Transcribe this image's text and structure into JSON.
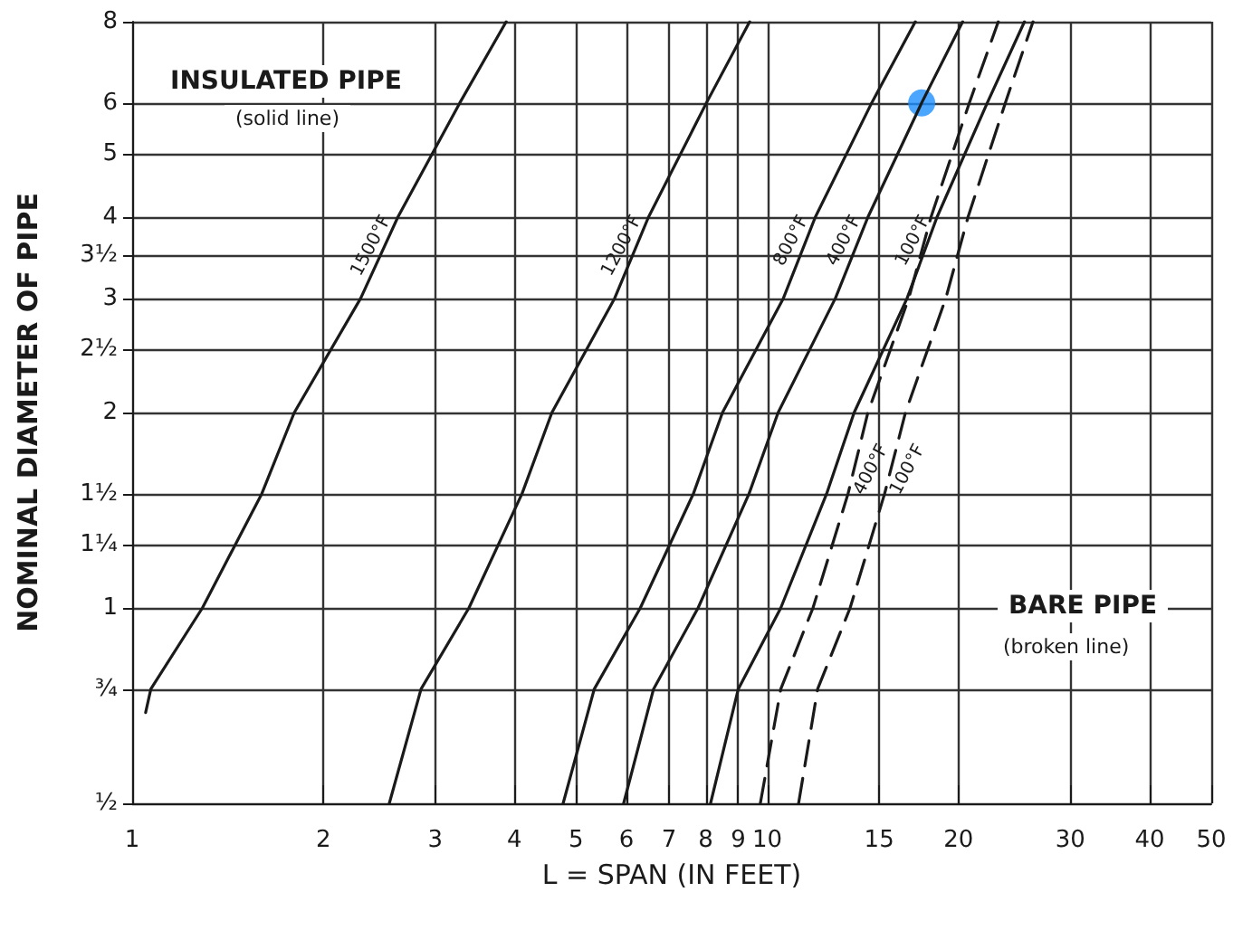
{
  "chart_data": {
    "type": "line",
    "xlabel": "L = SPAN (IN FEET)",
    "ylabel": "NOMINAL DIAMETER OF PIPE",
    "log": "xy",
    "grid": true,
    "legend": false,
    "marker": "none",
    "xlim": [
      1,
      50
    ],
    "xticks": [
      1,
      2,
      3,
      4,
      5,
      6,
      7,
      8,
      9,
      10,
      15,
      20,
      30,
      40,
      50
    ],
    "ylim": [
      0.5,
      8
    ],
    "yticks": [
      {
        "value": 0.5,
        "label": "½"
      },
      {
        "value": 0.75,
        "label": "¾"
      },
      1,
      {
        "value": 1.25,
        "label": "1¼"
      },
      {
        "value": 1.5,
        "label": "1½"
      },
      2,
      {
        "value": 2.5,
        "label": "2½"
      },
      3,
      {
        "value": 3.5,
        "label": "3½"
      },
      4,
      5,
      6,
      8
    ],
    "annotations": [
      "INSULATED PIPE",
      "(solid line)",
      "BARE PIPE",
      "(broken line)"
    ],
    "series": [
      {
        "name": "1500°F",
        "color": "#1a1a1a",
        "line_style": "solid",
        "x": [
          1.05,
          1.07,
          1.29,
          1.6,
          1.8,
          2.29,
          2.62,
          3.28,
          3.88
        ],
        "values": [
          0.69,
          0.75,
          1,
          1.5,
          2,
          3,
          4,
          6,
          8
        ]
      },
      {
        "name": "1200°F",
        "color": "#1a1a1a",
        "line_style": "solid",
        "x": [
          2.54,
          2.85,
          3.39,
          4.11,
          4.58,
          5.75,
          6.5,
          8.02,
          9.38
        ],
        "values": [
          0.5,
          0.75,
          1,
          1.5,
          2,
          3,
          4,
          6,
          8
        ]
      },
      {
        "name": "800°F",
        "color": "#1a1a1a",
        "line_style": "solid",
        "x": [
          4.77,
          5.34,
          6.31,
          7.65,
          8.5,
          10.6,
          11.9,
          14.6,
          17.1
        ],
        "values": [
          0.5,
          0.75,
          1,
          1.5,
          2,
          3,
          4,
          6,
          8
        ]
      },
      {
        "name": "400°F",
        "color": "#1a1a1a",
        "line_style": "solid",
        "x": [
          5.94,
          6.62,
          7.78,
          9.36,
          10.4,
          12.8,
          14.4,
          17.5,
          20.3
        ],
        "values": [
          0.5,
          0.75,
          1,
          1.5,
          2,
          3,
          4,
          6,
          8
        ]
      },
      {
        "name": "100°F",
        "color": "#1a1a1a",
        "line_style": "solid",
        "x": [
          8.14,
          9,
          10.5,
          12.4,
          13.7,
          16.6,
          18.5,
          22.2,
          25.4
        ],
        "values": [
          0.5,
          0.75,
          1,
          1.5,
          2,
          3,
          4,
          6,
          8
        ]
      },
      {
        "name": "400°F",
        "color": "#1a1a1a",
        "line_style": "dashed",
        "x": [
          9.75,
          10.5,
          11.8,
          13.4,
          14.4,
          16.7,
          18.1,
          20.8,
          23.1
        ],
        "values": [
          0.5,
          0.75,
          1,
          1.5,
          2,
          3,
          4,
          6,
          8
        ]
      },
      {
        "name": "100°F",
        "color": "#1a1a1a",
        "line_style": "dashed",
        "x": [
          11.2,
          12,
          13.5,
          15.3,
          16.5,
          19.1,
          20.7,
          23.7,
          26.2
        ],
        "values": [
          0.5,
          0.75,
          1,
          1.5,
          2,
          3,
          4,
          6,
          8
        ]
      },
      {
        "type": "scatter",
        "color": "#1e90ff",
        "marker": "circle",
        "x": [
          17.5
        ],
        "values": [
          6
        ]
      }
    ]
  }
}
